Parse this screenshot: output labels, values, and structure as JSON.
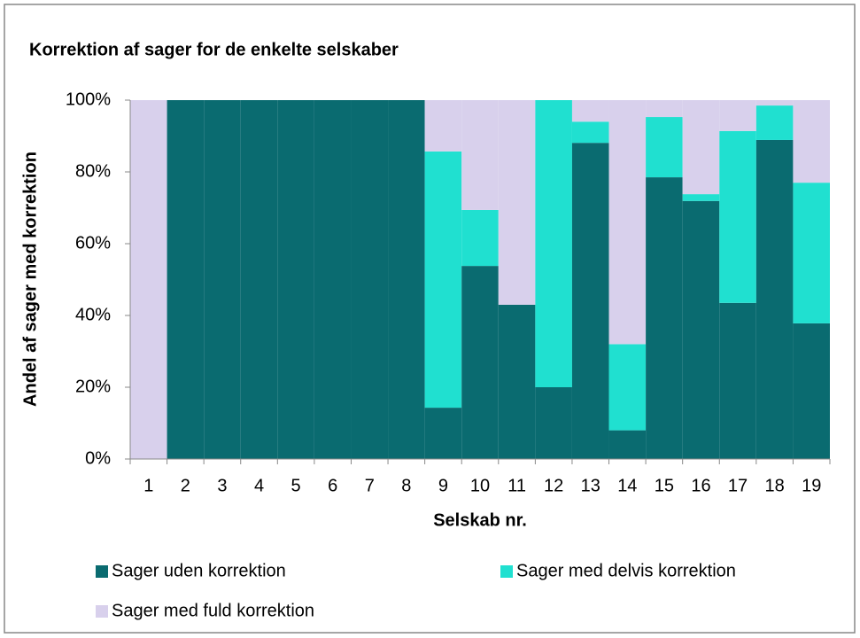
{
  "chart_data": {
    "type": "stacked_bar",
    "title": "Korrektion af sager for de enkelte selskaber",
    "x_label": "Selskab nr.",
    "y_label": "Andel af sager med korrektion",
    "categories": [
      "1",
      "2",
      "3",
      "4",
      "5",
      "6",
      "7",
      "8",
      "9",
      "10",
      "11",
      "12",
      "13",
      "14",
      "15",
      "16",
      "17",
      "18",
      "19"
    ],
    "series": [
      {
        "name": "Sager uden korrektion",
        "color": "#0a6b70",
        "values": [
          0,
          100,
          100,
          100,
          100,
          100,
          100,
          100,
          14.3,
          53.8,
          43,
          20,
          88.1,
          8,
          78.5,
          71.9,
          43.5,
          88.9,
          37.8
        ]
      },
      {
        "name": "Sager med delvis korrektion",
        "color": "#20e0d0",
        "values": [
          0,
          0,
          0,
          0,
          0,
          0,
          0,
          0,
          71.4,
          15.6,
          0,
          80,
          5.9,
          24,
          16.8,
          1.9,
          47.9,
          9.6,
          39.2
        ]
      },
      {
        "name": "Sager med fuld korrektion",
        "color": "#d8d0ec",
        "values": [
          100,
          0,
          0,
          0,
          0,
          0,
          0,
          0,
          14.3,
          30.6,
          57,
          0,
          6,
          68,
          4.7,
          26.2,
          8.6,
          1.5,
          23
        ]
      }
    ],
    "ylim": [
      0,
      100
    ],
    "yticks": [
      {
        "value": 0,
        "label": "0%"
      },
      {
        "value": 20,
        "label": "20%"
      },
      {
        "value": 40,
        "label": "40%"
      },
      {
        "value": 60,
        "label": "60%"
      },
      {
        "value": 80,
        "label": "80%"
      },
      {
        "value": 100,
        "label": "100%"
      }
    ]
  }
}
